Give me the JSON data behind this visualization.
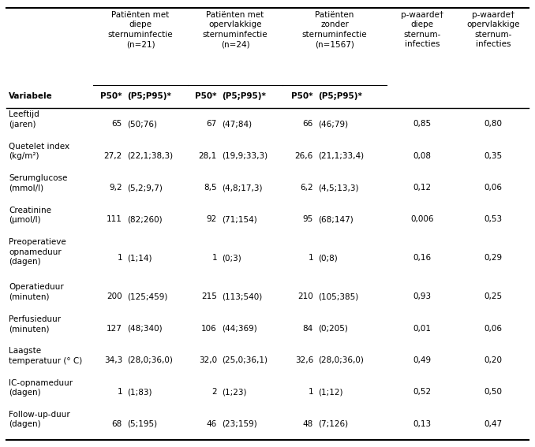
{
  "group_headers": [
    "Patiënten met\ndiepe\nsternuminfectie\n(n=21)",
    "Patiënten met\nopervlakkige\nsternuminfectie\n(n=24)",
    "Patiënten\nzonder\nsternuminfectie\n(n=1567)"
  ],
  "p_headers": [
    "p-waarde†\ndiepe\nsternum-\ninfecties",
    "p-waarde†\nopervlakkige\nsternum-\ninfecties"
  ],
  "sub_headers": [
    "Variabele",
    "P50*",
    "(P5;P95)*",
    "P50*",
    "(P5;P95)*",
    "P50*",
    "(P5;P95)*"
  ],
  "rows": [
    [
      "Leeftijd\n(jaren)",
      "65",
      "(50;76)",
      "67",
      "(47;84)",
      "66",
      "(46;79)",
      "0,85",
      "0,80"
    ],
    [
      "Quetelet index\n(kg/m²)",
      "27,2",
      "(22,1;38,3)",
      "28,1",
      "(19,9;33,3)",
      "26,6",
      "(21,1;33,4)",
      "0,08",
      "0,35"
    ],
    [
      "Serumglucose\n(mmol/l)",
      "9,2",
      "(5,2;9,7)",
      "8,5",
      "(4,8;17,3)",
      "6,2",
      "(4,5;13,3)",
      "0,12",
      "0,06"
    ],
    [
      "Creatinine\n(μmol/l)",
      "111",
      "(82;260)",
      "92",
      "(71;154)",
      "95",
      "(68;147)",
      "0,006",
      "0,53"
    ],
    [
      "Preoperatieve\nopnameduur\n(dagen)",
      "1",
      "(1;14)",
      "1",
      "(0;3)",
      "1",
      "(0;8)",
      "0,16",
      "0,29"
    ],
    [
      "Operatieduur\n(minuten)",
      "200",
      "(125;459)",
      "215",
      "(113;540)",
      "210",
      "(105;385)",
      "0,93",
      "0,25"
    ],
    [
      "Perfusieduur\n(minuten)",
      "127",
      "(48;340)",
      "106",
      "(44;369)",
      "84",
      "(0;205)",
      "0,01",
      "0,06"
    ],
    [
      "Laagste\ntemperatuur (° C)",
      "34,3",
      "(28,0;36,0)",
      "32,0",
      "(25,0;36,1)",
      "32,6",
      "(28,0;36,0)",
      "0,49",
      "0,20"
    ],
    [
      "IC-opnameduur\n(dagen)",
      "1",
      "(1;83)",
      "2",
      "(1;23)",
      "1",
      "(1;12)",
      "0,52",
      "0,50"
    ],
    [
      "Follow-up-duur\n(dagen)",
      "68",
      "(5;195)",
      "46",
      "(23;159)",
      "48",
      "(7;126)",
      "0,13",
      "0,47"
    ]
  ],
  "background_color": "#ffffff",
  "text_color": "#000000",
  "line_color": "#000000"
}
